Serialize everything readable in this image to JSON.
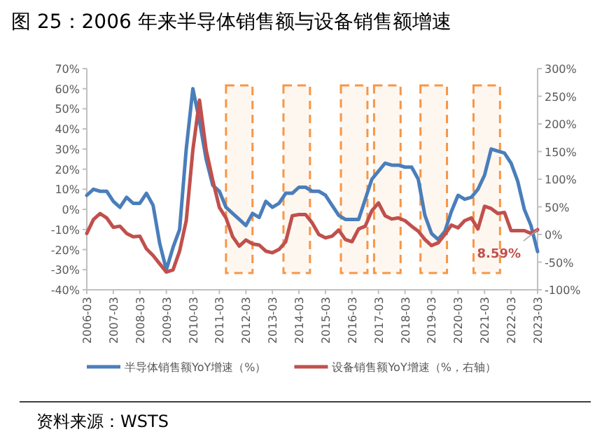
{
  "chart_data": {
    "type": "line",
    "title": "图 25：2006 年来半导体销售额与设备销售额增速",
    "annotations": [
      "8.59%",
      "资料来源：WSTS"
    ],
    "x": [
      "2006-03",
      "2006-06",
      "2006-09",
      "2006-12",
      "2007-03",
      "2007-06",
      "2007-09",
      "2007-12",
      "2008-03",
      "2008-06",
      "2008-09",
      "2008-12",
      "2009-03",
      "2009-06",
      "2009-09",
      "2009-12",
      "2010-03",
      "2010-06",
      "2010-09",
      "2010-12",
      "2011-03",
      "2011-06",
      "2011-09",
      "2011-12",
      "2012-03",
      "2012-06",
      "2012-09",
      "2012-12",
      "2013-03",
      "2013-06",
      "2013-09",
      "2013-12",
      "2014-03",
      "2014-06",
      "2014-09",
      "2014-12",
      "2015-03",
      "2015-06",
      "2015-09",
      "2015-12",
      "2016-03",
      "2016-06",
      "2016-09",
      "2016-12",
      "2017-03",
      "2017-06",
      "2017-09",
      "2017-12",
      "2018-03",
      "2018-06",
      "2018-09",
      "2018-12",
      "2019-03",
      "2019-06",
      "2019-09",
      "2019-12",
      "2020-03",
      "2020-06",
      "2020-09",
      "2020-12",
      "2021-03",
      "2021-06",
      "2021-09",
      "2021-12",
      "2022-03",
      "2022-06",
      "2022-09",
      "2022-12",
      "2023-03"
    ],
    "series": [
      {
        "name": "半导体销售额YoY增速（%）",
        "color": "#4a7ebb",
        "values": [
          7,
          10,
          9,
          9,
          4,
          1,
          6,
          3,
          3,
          8,
          2,
          -17,
          -30,
          -19,
          -10,
          30,
          60,
          44,
          25,
          12,
          9,
          1,
          -2,
          -5,
          -8,
          -2,
          -4,
          4,
          1,
          3,
          8,
          8,
          11,
          11,
          9,
          9,
          7,
          2,
          -3,
          -5,
          -5,
          -5,
          5,
          15,
          19,
          23,
          22,
          22,
          21,
          21,
          15,
          -3,
          -12,
          -15,
          -11,
          -1,
          7,
          5,
          6,
          10,
          17,
          30,
          29,
          28,
          23,
          14,
          0,
          -8,
          -21
        ]
      },
      {
        "name": "设备销售额YoY增速（%，右轴）",
        "color": "#c0504d",
        "axis": "y2",
        "values": [
          2,
          27,
          38,
          30,
          13,
          15,
          2,
          -4,
          -3,
          -26,
          -38,
          -53,
          -68,
          -64,
          -30,
          25,
          153,
          243,
          153,
          98,
          49,
          30,
          -4,
          -21,
          -10,
          -17,
          -19,
          -30,
          -33,
          -27,
          -13,
          34,
          36,
          36,
          21,
          0,
          -6,
          -3,
          8,
          -9,
          -13,
          10,
          15,
          43,
          57,
          34,
          28,
          30,
          25,
          15,
          6,
          -9,
          -20,
          -15,
          0,
          17,
          12,
          25,
          30,
          10,
          51,
          47,
          38,
          40,
          7,
          7,
          7,
          2,
          8.59
        ]
      }
    ],
    "xlim": [
      "2006-03",
      "2023-03"
    ],
    "xticks": [
      "2006-03",
      "2007-03",
      "2008-03",
      "2009-03",
      "2010-03",
      "2011-03",
      "2012-03",
      "2013-03",
      "2014-03",
      "2015-03",
      "2016-03",
      "2017-03",
      "2018-03",
      "2019-03",
      "2020-03",
      "2021-03",
      "2022-03",
      "2023-03"
    ],
    "ylim": [
      -40,
      70
    ],
    "yticks": [
      {
        "value": -40,
        "label": "-40%"
      },
      {
        "value": -30,
        "label": "-30%"
      },
      {
        "value": -20,
        "label": "-20%"
      },
      {
        "value": -10,
        "label": "-10%"
      },
      {
        "value": 0,
        "label": "0%"
      },
      {
        "value": 10,
        "label": "10%"
      },
      {
        "value": 20,
        "label": "20%"
      },
      {
        "value": 30,
        "label": "30%"
      },
      {
        "value": 40,
        "label": "40%"
      },
      {
        "value": 50,
        "label": "50%"
      },
      {
        "value": 60,
        "label": "60%"
      },
      {
        "value": 70,
        "label": "70%"
      }
    ],
    "y2lim": [
      -100,
      300
    ],
    "y2ticks": [
      {
        "value": -100,
        "label": "-100%"
      },
      {
        "value": -50,
        "label": "-50%"
      },
      {
        "value": 0,
        "label": "0%"
      },
      {
        "value": 50,
        "label": "50%"
      },
      {
        "value": 100,
        "label": "100%"
      },
      {
        "value": 150,
        "label": "150%"
      },
      {
        "value": 200,
        "label": "200%"
      },
      {
        "value": 250,
        "label": "250%"
      },
      {
        "value": 300,
        "label": "300%"
      }
    ],
    "bands": [
      {
        "axis": "x",
        "from": "2011-06",
        "to": "2012-06",
        "color": "#f79646"
      },
      {
        "axis": "x",
        "from": "2013-08",
        "to": "2014-08",
        "color": "#f79646"
      },
      {
        "axis": "x",
        "from": "2015-10",
        "to": "2016-10",
        "color": "#f79646"
      },
      {
        "axis": "x",
        "from": "2017-01",
        "to": "2018-01",
        "color": "#f79646"
      },
      {
        "axis": "x",
        "from": "2018-10",
        "to": "2019-10",
        "color": "#f79646"
      },
      {
        "axis": "x",
        "from": "2020-10",
        "to": "2021-10",
        "color": "#f79646"
      }
    ],
    "grid": false,
    "legend": "bottom",
    "marker": "none",
    "line_style": "solid"
  }
}
